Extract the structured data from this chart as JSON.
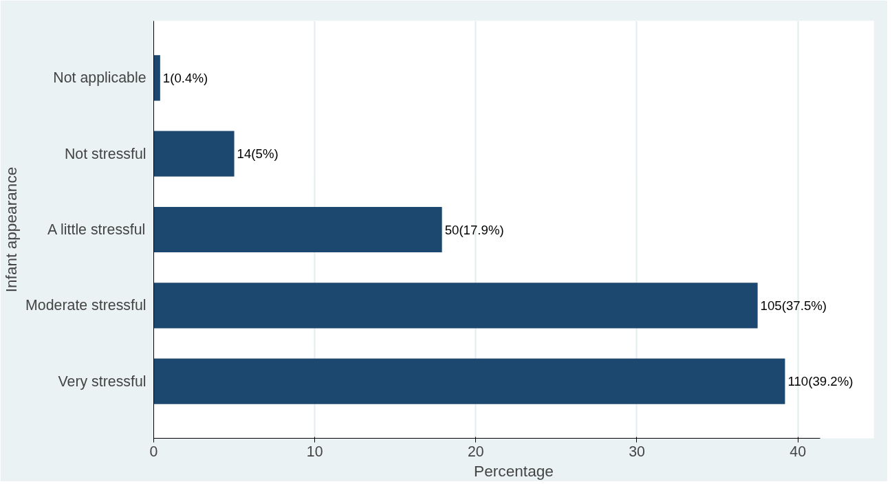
{
  "chart_data": {
    "type": "bar",
    "orientation": "horizontal",
    "xlabel": "Percentage",
    "ylabel": "Infant appearance",
    "categories": [
      "Not applicable",
      "Not stressful",
      "A little stressful",
      "Moderate stressful",
      "Very stressful"
    ],
    "values": [
      0.4,
      5,
      17.9,
      37.5,
      39.2
    ],
    "value_labels": [
      "1(0.4%)",
      "14(5%)",
      "50(17.9%)",
      "105(37.5%)",
      "110(39.2%)"
    ],
    "color": "#1c476e",
    "xlim": [
      0,
      41.4
    ],
    "xticks": [
      0,
      10,
      20,
      30,
      40
    ],
    "grid": "x"
  }
}
